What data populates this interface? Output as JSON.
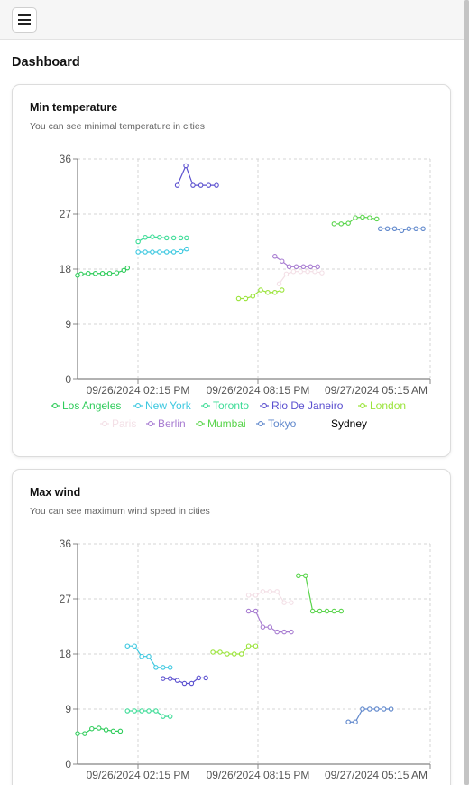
{
  "page": {
    "title": "Dashboard"
  },
  "cards": [
    {
      "title": "Min temperature",
      "subtitle": "You can see minimal temperature in cities"
    },
    {
      "title": "Max wind",
      "subtitle": "You can see maximum wind speed in cities"
    }
  ],
  "chart_data": [
    {
      "type": "line",
      "title": "Min temperature",
      "x_ticks": [
        "09/26/2024 02:15 PM",
        "09/26/2024 08:15 PM",
        "09/27/2024 05:15 AM"
      ],
      "y_ticks": [
        0,
        9,
        18,
        27,
        36
      ],
      "ylim": [
        0,
        36
      ],
      "grid": true,
      "legend": "bottom",
      "series": [
        {
          "name": "Los Angeles",
          "color": "#2ecc5a",
          "x": [
            0,
            0.5,
            1.5,
            2.5,
            3.5,
            4.5,
            5.5,
            6.5,
            7
          ],
          "y": [
            17,
            17.2,
            17.3,
            17.3,
            17.3,
            17.3,
            17.4,
            17.8,
            18.2
          ]
        },
        {
          "name": "New York",
          "color": "#3cc8e0",
          "x": [
            8.5,
            9.5,
            10.5,
            11.5,
            12.5,
            13.5,
            14.5,
            15.3
          ],
          "y": [
            20.8,
            20.8,
            20.8,
            20.8,
            20.8,
            20.8,
            20.9,
            21.3
          ]
        },
        {
          "name": "Toronto",
          "color": "#3ddc97",
          "x": [
            8.5,
            9.5,
            10.5,
            11.5,
            12.5,
            13.5,
            14.5,
            15.3
          ],
          "y": [
            22.5,
            23.2,
            23.3,
            23.2,
            23.1,
            23.1,
            23.1,
            23.1
          ]
        },
        {
          "name": "Rio De Janeiro",
          "color": "#5a4fcf",
          "x": [
            14,
            15.2,
            16.2,
            17.3,
            18.4,
            19.5
          ],
          "y": [
            31.7,
            34.9,
            31.7,
            31.7,
            31.7,
            31.7
          ]
        },
        {
          "name": "London",
          "color": "#9ae43a",
          "x": [
            22.6,
            23.6,
            24.6,
            25.7,
            26.7,
            27.7,
            28.7
          ],
          "y": [
            13.2,
            13.2,
            13.6,
            14.6,
            14.2,
            14.2,
            14.6
          ]
        },
        {
          "name": "Paris",
          "color": "#f3dfe6",
          "x": [
            28.3,
            29.3,
            30.3,
            31.3,
            32.3,
            33.3,
            34.3
          ],
          "y": [
            15.6,
            17.2,
            17.6,
            17.6,
            17.6,
            17.6,
            17.4
          ]
        },
        {
          "name": "Berlin",
          "color": "#a77bd1",
          "x": [
            27.7,
            28.7,
            29.7,
            30.7,
            31.7,
            32.7,
            33.7
          ],
          "y": [
            20.1,
            19.3,
            18.4,
            18.4,
            18.4,
            18.4,
            18.4
          ]
        },
        {
          "name": "Mumbai",
          "color": "#59d44b",
          "x": [
            36,
            37,
            38,
            39,
            40,
            41,
            42
          ],
          "y": [
            25.4,
            25.4,
            25.5,
            26.4,
            26.5,
            26.4,
            26.2
          ]
        },
        {
          "name": "Tokyo",
          "color": "#6088cc",
          "x": [
            42.5,
            43.5,
            44.5,
            45.5,
            46.5,
            47.5,
            48.5
          ],
          "y": [
            24.6,
            24.6,
            24.6,
            24.3,
            24.6,
            24.6,
            24.6
          ]
        },
        {
          "name": "Sydney",
          "color": "#000000",
          "x": [],
          "y": []
        }
      ]
    },
    {
      "type": "line",
      "title": "Max wind",
      "x_ticks": [
        "09/26/2024 02:15 PM",
        "09/26/2024 08:15 PM",
        "09/27/2024 05:15 AM"
      ],
      "y_ticks": [
        0,
        9,
        18,
        27,
        36
      ],
      "ylim": [
        0,
        36
      ],
      "grid": true,
      "series": [
        {
          "name": "Los Angeles",
          "color": "#2ecc5a",
          "x": [
            0,
            1,
            2,
            3,
            4,
            5,
            6
          ],
          "y": [
            5,
            5,
            5.8,
            5.9,
            5.6,
            5.4,
            5.4
          ]
        },
        {
          "name": "New York",
          "color": "#3cc8e0",
          "x": [
            7,
            8,
            9,
            10,
            11,
            12,
            13
          ],
          "y": [
            19.3,
            19.3,
            17.6,
            17.6,
            15.8,
            15.8,
            15.8
          ]
        },
        {
          "name": "Toronto",
          "color": "#3ddc97",
          "x": [
            7,
            8,
            9,
            10,
            11,
            12,
            13
          ],
          "y": [
            8.7,
            8.7,
            8.7,
            8.7,
            8.7,
            7.8,
            7.8
          ]
        },
        {
          "name": "Rio De Janeiro",
          "color": "#5a4fcf",
          "x": [
            12,
            13,
            14,
            15,
            16,
            17,
            18
          ],
          "y": [
            14,
            14,
            13.7,
            13.2,
            13.2,
            14.1,
            14.1
          ]
        },
        {
          "name": "London",
          "color": "#9ae43a",
          "x": [
            19,
            20,
            21,
            22,
            23,
            24,
            25
          ],
          "y": [
            18.3,
            18.3,
            18,
            18,
            18,
            19.3,
            19.3
          ]
        },
        {
          "name": "Paris",
          "color": "#f3dfe6",
          "x": [
            24,
            25,
            26,
            27,
            28,
            29,
            30
          ],
          "y": [
            27.6,
            27.6,
            28.2,
            28.2,
            28.2,
            26.4,
            26.4
          ]
        },
        {
          "name": "Berlin",
          "color": "#a77bd1",
          "x": [
            24,
            25,
            26,
            27,
            28,
            29,
            30
          ],
          "y": [
            25,
            25,
            22.4,
            22.4,
            21.6,
            21.6,
            21.6
          ]
        },
        {
          "name": "Mumbai",
          "color": "#59d44b",
          "x": [
            31,
            32,
            33,
            34,
            35,
            36,
            37
          ],
          "y": [
            30.8,
            30.8,
            25,
            25,
            25,
            25,
            25
          ]
        },
        {
          "name": "Tokyo",
          "color": "#6088cc",
          "x": [
            38,
            39,
            40,
            41,
            42,
            43,
            44
          ],
          "y": [
            6.9,
            6.9,
            9,
            9,
            9,
            9,
            9
          ]
        },
        {
          "name": "Sydney",
          "color": "#000000",
          "x": [],
          "y": []
        }
      ]
    }
  ]
}
